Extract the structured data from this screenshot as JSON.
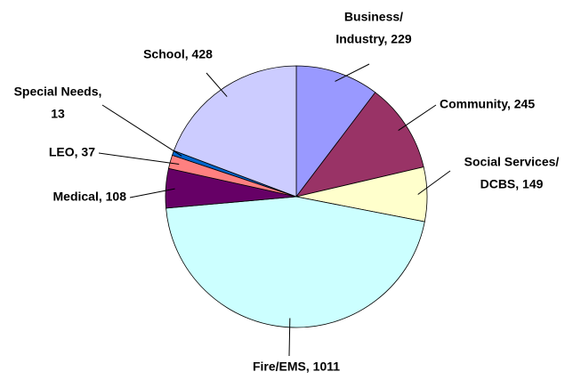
{
  "chart_data": {
    "type": "pie",
    "values": [
      229,
      245,
      149,
      1011,
      108,
      37,
      13,
      428
    ],
    "value_labels": [
      [
        "Business/",
        "Industry, 229"
      ],
      [
        "Community, 245"
      ],
      [
        "Social Services/",
        "DCBS, 149"
      ],
      [
        "Fire/EMS, 1011"
      ],
      [
        "Medical, 108"
      ],
      [
        "LEO, 37"
      ],
      [
        "Special Needs,",
        "13"
      ],
      [
        "School, 428"
      ]
    ],
    "colors": [
      "#9999ff",
      "#993366",
      "#ffffcc",
      "#ccffff",
      "#660066",
      "#ff8080",
      "#0066cc",
      "#ccccff"
    ]
  }
}
